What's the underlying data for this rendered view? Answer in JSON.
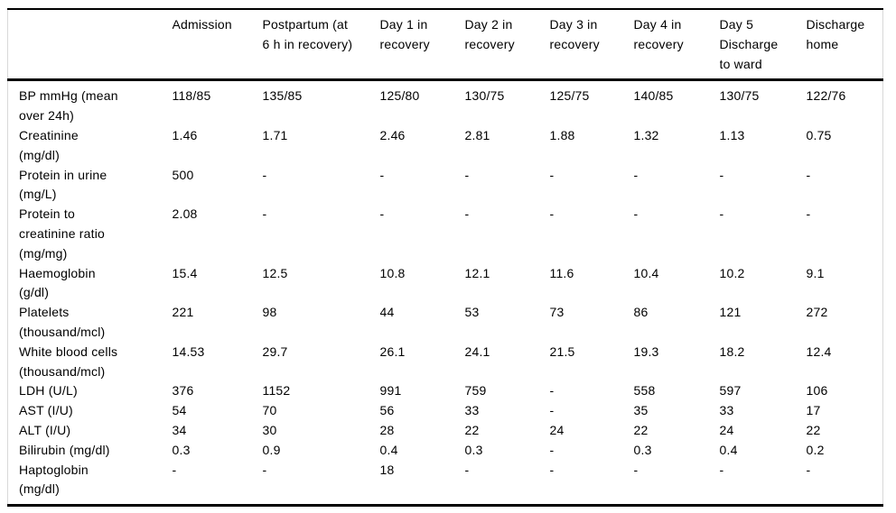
{
  "table": {
    "columns": [
      "",
      "Admission",
      "Postpartum (at\n6 h in recovery)",
      "Day 1 in\nrecovery",
      "Day 2 in\nrecovery",
      "Day 3 in\nrecovery",
      "Day 4 in\nrecovery",
      "Day 5\nDischarge\nto ward",
      "Discharge\nhome"
    ],
    "rows": [
      {
        "label": "BP mmHg (mean\nover 24h)",
        "values": [
          "118/85",
          "135/85",
          "125/80",
          "130/75",
          "125/75",
          "140/85",
          "130/75",
          "122/76"
        ]
      },
      {
        "label": "Creatinine\n(mg/dl)",
        "values": [
          "1.46",
          "1.71",
          "2.46",
          "2.81",
          "1.88",
          "1.32",
          "1.13",
          "0.75"
        ]
      },
      {
        "label": "Protein in urine\n(mg/L)",
        "values": [
          "500",
          "-",
          "-",
          "-",
          "-",
          "-",
          "-",
          "-"
        ]
      },
      {
        "label": "Protein to\ncreatinine ratio\n(mg/mg)",
        "values": [
          "2.08",
          "-",
          "-",
          "-",
          "-",
          "-",
          "-",
          "-"
        ]
      },
      {
        "label": "Haemoglobin\n(g/dl)",
        "values": [
          "15.4",
          "12.5",
          "10.8",
          "12.1",
          "11.6",
          "10.4",
          "10.2",
          "9.1"
        ]
      },
      {
        "label": "Platelets\n(thousand/mcl)",
        "values": [
          "221",
          "98",
          "44",
          "53",
          "73",
          "86",
          "121",
          "272"
        ]
      },
      {
        "label": "White blood cells\n(thousand/mcl)",
        "values": [
          "14.53",
          "29.7",
          "26.1",
          "24.1",
          "21.5",
          "19.3",
          "18.2",
          "12.4"
        ]
      },
      {
        "label": "LDH (U/L)",
        "values": [
          "376",
          "1152",
          "991",
          "759",
          "-",
          "558",
          "597",
          "106"
        ]
      },
      {
        "label": "AST (I/U)",
        "values": [
          "54",
          "70",
          "56",
          "33",
          "-",
          "35",
          "33",
          "17"
        ]
      },
      {
        "label": "ALT (I/U)",
        "values": [
          "34",
          "30",
          "28",
          "22",
          "24",
          "22",
          "24",
          "22"
        ]
      },
      {
        "label": "Bilirubin (mg/dl)",
        "values": [
          "0.3",
          "0.9",
          "0.4",
          "0.3",
          "-",
          "0.3",
          "0.4",
          "0.2"
        ]
      },
      {
        "label": "Haptoglobin\n(mg/dl)",
        "values": [
          "-",
          "-",
          "18",
          "-",
          "-",
          "-",
          "-",
          "-"
        ]
      }
    ]
  }
}
